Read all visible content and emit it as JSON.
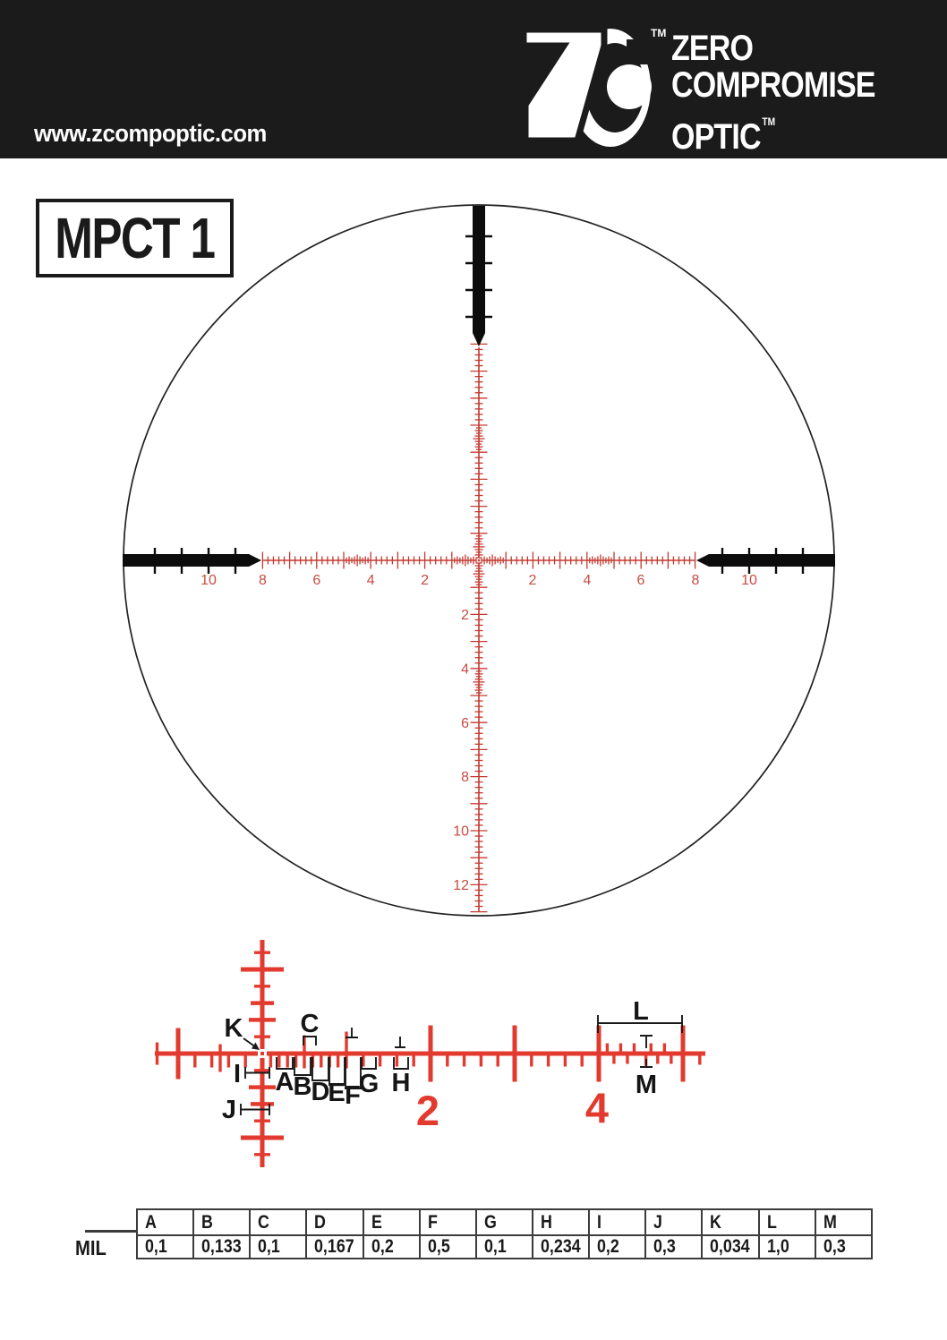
{
  "header": {
    "website": "www.zcompoptic.com",
    "tm": "TM",
    "brand": {
      "line1": "ZERO",
      "line2": "COMPROMISE",
      "line3": "OPTIC"
    }
  },
  "reticle_name": "MPCT 1",
  "main_scale": {
    "h_left": [
      "10",
      "8",
      "6",
      "4",
      "2"
    ],
    "h_right": [
      "2",
      "4",
      "6",
      "8",
      "10"
    ],
    "v_down": [
      "2",
      "4",
      "6",
      "8",
      "10",
      "12"
    ]
  },
  "detail": {
    "letters": [
      "A",
      "B",
      "C",
      "D",
      "E",
      "F",
      "G",
      "H",
      "I",
      "J",
      "K",
      "L",
      "M"
    ],
    "numerals": [
      "2",
      "4"
    ]
  },
  "table": {
    "row_label": "MIL",
    "columns": [
      "A",
      "B",
      "C",
      "D",
      "E",
      "F",
      "G",
      "H",
      "I",
      "J",
      "K",
      "L",
      "M"
    ],
    "values": [
      "0,1",
      "0,133",
      "0,1",
      "0,167",
      "0,2",
      "0,5",
      "0,1",
      "0,234",
      "0,2",
      "0,3",
      "0,034",
      "1,0",
      "0,3"
    ]
  },
  "colors": {
    "header_bg": "#1b1b1b",
    "reticle_red": "#c43a31",
    "detail_red": "#e23a2e",
    "scale_label_red": "#c64b42",
    "black": "#1a1a1a"
  }
}
